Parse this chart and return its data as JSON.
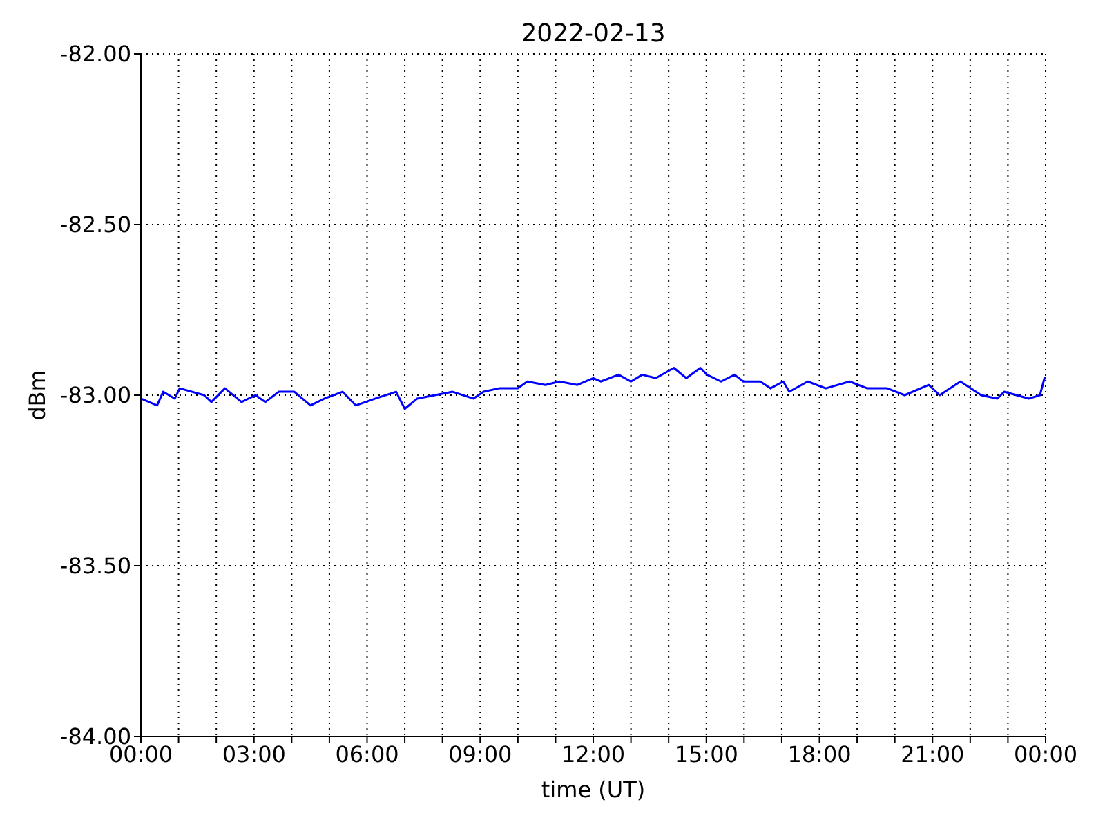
{
  "chart_data": {
    "type": "line",
    "title": "2022-02-13",
    "xlabel": "time (UT)",
    "ylabel": "dBm",
    "x": [
      0,
      0.43,
      0.59,
      0.9,
      1.03,
      1.68,
      1.87,
      2.23,
      2.67,
      3.04,
      3.3,
      3.66,
      4.07,
      4.5,
      4.87,
      5.35,
      5.7,
      6.22,
      6.77,
      7.0,
      7.33,
      7.8,
      8.27,
      8.82,
      9.09,
      9.5,
      10.0,
      10.25,
      10.73,
      11.1,
      11.58,
      12.0,
      12.2,
      12.67,
      13.0,
      13.3,
      13.66,
      14.14,
      14.47,
      14.84,
      15.02,
      15.39,
      15.75,
      15.98,
      16.43,
      16.7,
      17.04,
      17.2,
      17.69,
      18.17,
      18.8,
      19.27,
      19.8,
      20.26,
      20.9,
      21.19,
      21.74,
      22.29,
      22.72,
      22.9,
      23.56,
      23.85,
      23.97,
      24
    ],
    "series": [
      {
        "color": "#0000ff",
        "values": [
          -83.01,
          -83.03,
          -82.99,
          -83.01,
          -82.98,
          -83.0,
          -83.02,
          -82.98,
          -83.02,
          -83.0,
          -83.02,
          -82.99,
          -82.99,
          -83.03,
          -83.01,
          -82.99,
          -83.03,
          -83.01,
          -82.99,
          -83.04,
          -83.01,
          -83.0,
          -82.99,
          -83.01,
          -82.99,
          -82.98,
          -82.98,
          -82.96,
          -82.97,
          -82.96,
          -82.97,
          -82.95,
          -82.96,
          -82.94,
          -82.96,
          -82.94,
          -82.95,
          -82.92,
          -82.95,
          -82.92,
          -82.94,
          -82.96,
          -82.94,
          -82.96,
          -82.96,
          -82.98,
          -82.96,
          -82.99,
          -82.96,
          -82.98,
          -82.96,
          -82.98,
          -82.98,
          -83.0,
          -82.97,
          -83.0,
          -82.96,
          -83.0,
          -83.01,
          -82.99,
          -83.01,
          -83.0,
          -82.95,
          -82.95
        ]
      }
    ],
    "xlim": [
      0,
      24
    ],
    "xticks": [
      {
        "value": 0,
        "label": "00:00"
      },
      {
        "value": 1,
        "label": null
      },
      {
        "value": 2,
        "label": null
      },
      {
        "value": 3,
        "label": "03:00"
      },
      {
        "value": 4,
        "label": null
      },
      {
        "value": 5,
        "label": null
      },
      {
        "value": 6,
        "label": "06:00"
      },
      {
        "value": 7,
        "label": null
      },
      {
        "value": 8,
        "label": null
      },
      {
        "value": 9,
        "label": "09:00"
      },
      {
        "value": 10,
        "label": null
      },
      {
        "value": 11,
        "label": null
      },
      {
        "value": 12,
        "label": "12:00"
      },
      {
        "value": 13,
        "label": null
      },
      {
        "value": 14,
        "label": null
      },
      {
        "value": 15,
        "label": "15:00"
      },
      {
        "value": 16,
        "label": null
      },
      {
        "value": 17,
        "label": null
      },
      {
        "value": 18,
        "label": "18:00"
      },
      {
        "value": 19,
        "label": null
      },
      {
        "value": 20,
        "label": null
      },
      {
        "value": 21,
        "label": "21:00"
      },
      {
        "value": 22,
        "label": null
      },
      {
        "value": 23,
        "label": null
      },
      {
        "value": 24,
        "label": "00:00"
      }
    ],
    "ylim": [
      -84,
      -82
    ],
    "yticks": [
      {
        "value": -84,
        "label": "-84.00"
      },
      {
        "value": -83.5,
        "label": "-83.50"
      },
      {
        "value": -83,
        "label": "-83.00"
      },
      {
        "value": -82.5,
        "label": "-82.50"
      },
      {
        "value": -82,
        "label": "-82.00"
      }
    ],
    "grid": true,
    "legend": false,
    "marker": "none",
    "line_style": "solid"
  }
}
